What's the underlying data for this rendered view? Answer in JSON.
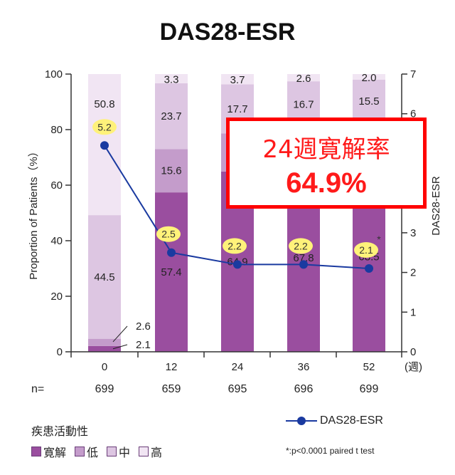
{
  "title": "DAS28-ESR",
  "callout": {
    "line1": "24週寛解率",
    "line2": "64.9%"
  },
  "n_label": "n=",
  "legend": {
    "title": "疾患活動性",
    "items": [
      "寛解",
      "低",
      "中",
      "高"
    ],
    "line_label": "DAS28-ESR"
  },
  "footnote": "*:p<0.0001 paired t test",
  "colors": {
    "remission": "#9a4e9f",
    "low": "#c49ccb",
    "moderate": "#ddc6e2",
    "high": "#f1e5f3",
    "line": "#1a3aa0",
    "bubble": "#fff27a",
    "callout_border": "#ff0000"
  },
  "chart_data": {
    "type": "bar",
    "subtype": "stacked_bar_with_line",
    "categories": [
      "0",
      "12",
      "24",
      "36",
      "52"
    ],
    "x_unit": "(週)",
    "n_values": [
      "699",
      "659",
      "695",
      "696",
      "699"
    ],
    "ylabel": "Proportion of Patients（%）",
    "ylim": [
      0,
      100
    ],
    "y_ticks": [
      "0",
      "20",
      "40",
      "60",
      "80",
      "100"
    ],
    "y2label": "DAS28-ESR",
    "y2lim": [
      0,
      7
    ],
    "y2_ticks": [
      "0",
      "1",
      "2",
      "3",
      "4",
      "5",
      "6",
      "7"
    ],
    "series": [
      {
        "name": "寛解",
        "values": [
          2.1,
          57.4,
          64.9,
          67.8,
          68.5
        ],
        "labels": [
          "2.1",
          "57.4",
          "64.9",
          "67.8",
          "68.5"
        ]
      },
      {
        "name": "低",
        "values": [
          2.6,
          15.6,
          13.7,
          12.9,
          14.0
        ],
        "labels": [
          "2.6",
          "15.6",
          "",
          "",
          ""
        ]
      },
      {
        "name": "中",
        "values": [
          44.5,
          23.7,
          17.7,
          16.7,
          15.5
        ],
        "labels": [
          "44.5",
          "23.7",
          "17.7",
          "16.7",
          "15.5"
        ]
      },
      {
        "name": "高",
        "values": [
          50.8,
          3.3,
          3.7,
          2.6,
          2.0
        ],
        "labels": [
          "50.8",
          "3.3",
          "3.7",
          "2.6",
          "2.0"
        ]
      }
    ],
    "line": {
      "name": "DAS28-ESR",
      "values": [
        5.2,
        2.5,
        2.2,
        2.2,
        2.1
      ],
      "labels": [
        "5.2",
        "2.5",
        "2.2",
        "2.2",
        "2.1"
      ],
      "asterisk": "*"
    }
  }
}
